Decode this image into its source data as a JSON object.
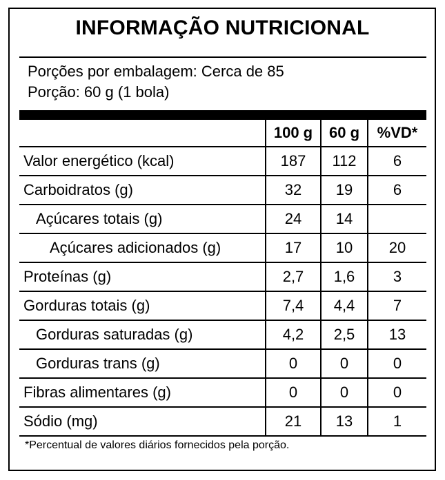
{
  "title": "INFORMAÇÃO NUTRICIONAL",
  "servings": {
    "per_package": "Porções por embalagem: Cerca de 85",
    "portion": "Porção: 60 g (1 bola)"
  },
  "columns": [
    "100 g",
    "60 g",
    "%VD*"
  ],
  "rows": [
    {
      "label": "Valor energético (kcal)",
      "v100": "187",
      "v60": "112",
      "vd": "6"
    },
    {
      "label": "Carboidratos (g)",
      "v100": "32",
      "v60": "19",
      "vd": "6"
    },
    {
      "label": "Açúcares totais (g)",
      "v100": "24",
      "v60": "14",
      "vd": ""
    },
    {
      "label": "Açúcares adicionados (g)",
      "v100": "17",
      "v60": "10",
      "vd": "20"
    },
    {
      "label": "Proteínas (g)",
      "v100": "2,7",
      "v60": "1,6",
      "vd": "3"
    },
    {
      "label": "Gorduras totais (g)",
      "v100": "7,4",
      "v60": "4,4",
      "vd": "7"
    },
    {
      "label": "Gorduras saturadas (g)",
      "v100": "4,2",
      "v60": "2,5",
      "vd": "13"
    },
    {
      "label": "Gorduras trans (g)",
      "v100": "0",
      "v60": "0",
      "vd": "0"
    },
    {
      "label": "Fibras alimentares (g)",
      "v100": "0",
      "v60": "0",
      "vd": "0"
    },
    {
      "label": "Sódio (mg)",
      "v100": "21",
      "v60": "13",
      "vd": "1"
    }
  ],
  "footnote": "*Percentual de valores diários fornecidos pela porção."
}
